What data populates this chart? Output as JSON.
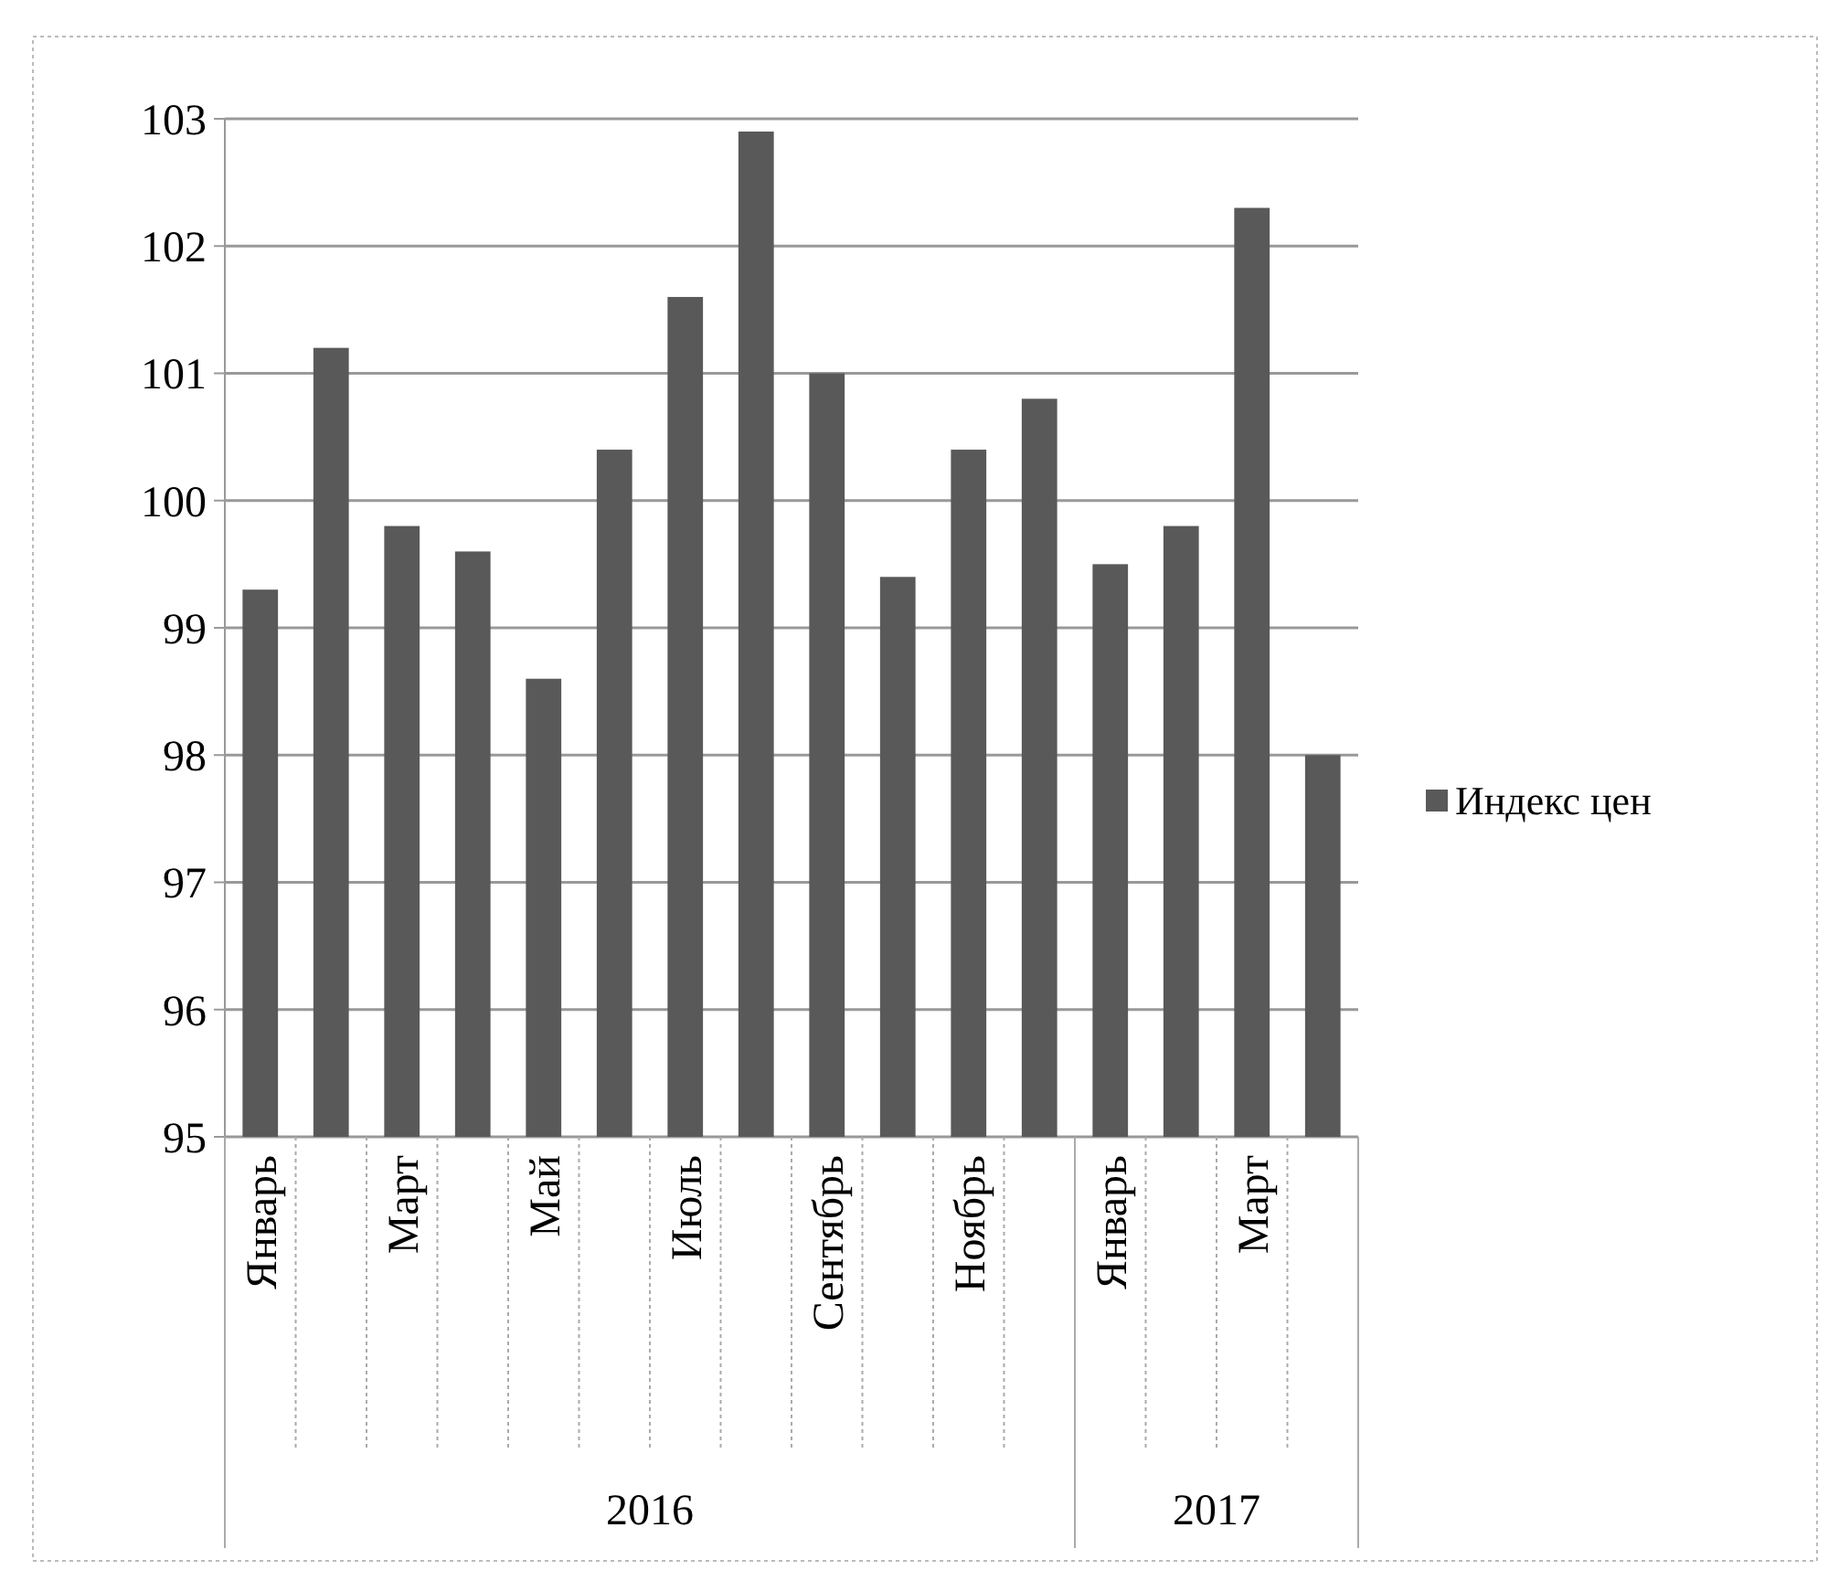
{
  "chart_data": {
    "type": "bar",
    "categories": [
      "Январь",
      null,
      "Март",
      null,
      "Май",
      null,
      "Июль",
      null,
      "Сентябрь",
      null,
      "Ноябрь",
      null,
      "Январь",
      null,
      "Март",
      null
    ],
    "series": [
      {
        "name": "Индекс цен",
        "color": "#595959",
        "values": [
          99.3,
          101.2,
          99.8,
          99.6,
          98.6,
          100.4,
          101.6,
          102.9,
          101.0,
          99.4,
          100.4,
          100.8,
          99.5,
          99.8,
          102.3,
          98.0
        ]
      }
    ],
    "ylim": [
      95,
      103
    ],
    "yticks": [
      95,
      96,
      97,
      98,
      99,
      100,
      101,
      102,
      103
    ],
    "grid": "y",
    "legend": "right",
    "annotations": [
      "2016",
      "2017"
    ]
  }
}
